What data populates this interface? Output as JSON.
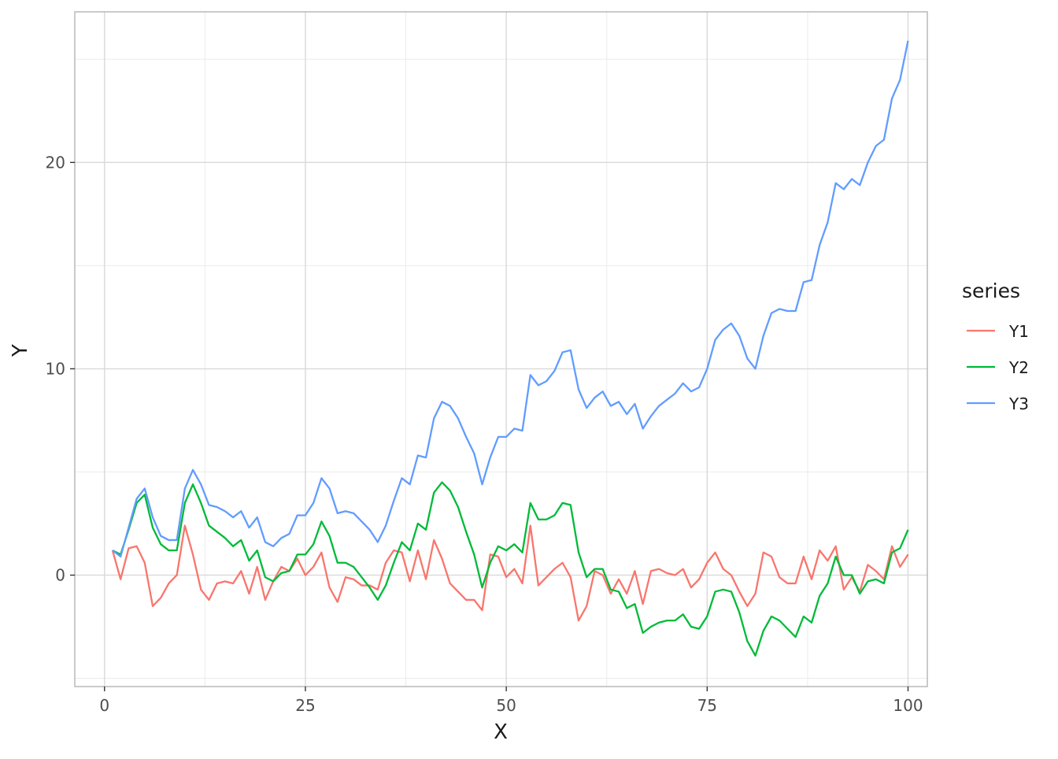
{
  "chart_data": {
    "type": "line",
    "title": "",
    "xlabel": "X",
    "ylabel": "Y",
    "xlim": [
      -3.7,
      102.4
    ],
    "ylim": [
      -5.4,
      27.3
    ],
    "x_major_ticks": [
      0,
      25,
      50,
      75,
      100
    ],
    "x_tick_labels": [
      "0",
      "25",
      "50",
      "75",
      "100"
    ],
    "x_minor_ticks": [
      12.5,
      37.5,
      62.5,
      87.5
    ],
    "y_major_ticks": [
      0,
      10,
      20
    ],
    "y_tick_labels": [
      "0",
      "10",
      "20"
    ],
    "y_minor_ticks": [
      -5,
      5,
      15,
      25
    ],
    "grid": true,
    "legend": {
      "title": "series",
      "position": "right"
    },
    "x": [
      1,
      2,
      3,
      4,
      5,
      6,
      7,
      8,
      9,
      10,
      11,
      12,
      13,
      14,
      15,
      16,
      17,
      18,
      19,
      20,
      21,
      22,
      23,
      24,
      25,
      26,
      27,
      28,
      29,
      30,
      31,
      32,
      33,
      34,
      35,
      36,
      37,
      38,
      39,
      40,
      41,
      42,
      43,
      44,
      45,
      46,
      47,
      48,
      49,
      50,
      51,
      52,
      53,
      54,
      55,
      56,
      57,
      58,
      59,
      60,
      61,
      62,
      63,
      64,
      65,
      66,
      67,
      68,
      69,
      70,
      71,
      72,
      73,
      74,
      75,
      76,
      77,
      78,
      79,
      80,
      81,
      82,
      83,
      84,
      85,
      86,
      87,
      88,
      89,
      90,
      91,
      92,
      93,
      94,
      95,
      96,
      97,
      98,
      99,
      100
    ],
    "series": [
      {
        "name": "Y1",
        "color": "#F8766D",
        "values": [
          1.2,
          -0.2,
          1.3,
          1.4,
          0.6,
          -1.5,
          -1.1,
          -0.4,
          0.0,
          2.4,
          1.0,
          -0.7,
          -1.2,
          -0.4,
          -0.3,
          -0.4,
          0.2,
          -0.9,
          0.4,
          -1.2,
          -0.3,
          0.4,
          0.2,
          0.8,
          0.0,
          0.4,
          1.1,
          -0.6,
          -1.3,
          -0.1,
          -0.2,
          -0.5,
          -0.5,
          -0.7,
          0.6,
          1.2,
          1.1,
          -0.3,
          1.2,
          -0.2,
          1.7,
          0.8,
          -0.4,
          -0.8,
          -1.2,
          -1.2,
          -1.7,
          1.0,
          0.9,
          -0.1,
          0.3,
          -0.4,
          2.4,
          -0.5,
          -0.1,
          0.3,
          0.6,
          -0.1,
          -2.2,
          -1.5,
          0.2,
          0.0,
          -0.9,
          -0.2,
          -0.9,
          0.2,
          -1.4,
          0.2,
          0.3,
          0.1,
          0.0,
          0.3,
          -0.6,
          -0.2,
          0.6,
          1.1,
          0.3,
          0.0,
          -0.8,
          -1.5,
          -0.9,
          1.1,
          0.9,
          -0.1,
          -0.4,
          -0.4,
          0.9,
          -0.2,
          1.2,
          0.7,
          1.4,
          -0.7,
          -0.1,
          -0.8,
          0.5,
          0.2,
          -0.2,
          1.4,
          0.4,
          1.0
        ]
      },
      {
        "name": "Y2",
        "color": "#00BA38",
        "values": [
          1.2,
          1.0,
          2.2,
          3.5,
          3.9,
          2.3,
          1.5,
          1.2,
          1.2,
          3.5,
          4.4,
          3.5,
          2.4,
          2.1,
          1.8,
          1.4,
          1.7,
          0.7,
          1.2,
          -0.1,
          -0.3,
          0.1,
          0.2,
          1.0,
          1.0,
          1.5,
          2.6,
          1.9,
          0.6,
          0.6,
          0.4,
          -0.1,
          -0.6,
          -1.2,
          -0.5,
          0.6,
          1.6,
          1.2,
          2.5,
          2.2,
          4.0,
          4.5,
          4.1,
          3.3,
          2.1,
          1.0,
          -0.6,
          0.6,
          1.4,
          1.2,
          1.5,
          1.1,
          3.5,
          2.7,
          2.7,
          2.9,
          3.5,
          3.4,
          1.1,
          -0.1,
          0.3,
          0.3,
          -0.7,
          -0.8,
          -1.6,
          -1.4,
          -2.8,
          -2.5,
          -2.3,
          -2.2,
          -2.2,
          -1.9,
          -2.5,
          -2.6,
          -2.0,
          -0.8,
          -0.7,
          -0.8,
          -1.8,
          -3.2,
          -3.9,
          -2.7,
          -2.0,
          -2.2,
          -2.6,
          -3.0,
          -2.0,
          -2.3,
          -1.0,
          -0.4,
          0.9,
          0.0,
          0.0,
          -0.9,
          -0.3,
          -0.2,
          -0.4,
          1.1,
          1.3,
          2.2
        ]
      },
      {
        "name": "Y3",
        "color": "#619CFF",
        "values": [
          1.2,
          0.9,
          2.3,
          3.7,
          4.2,
          2.8,
          1.9,
          1.7,
          1.7,
          4.2,
          5.1,
          4.4,
          3.4,
          3.3,
          3.1,
          2.8,
          3.1,
          2.3,
          2.8,
          1.6,
          1.4,
          1.8,
          2.0,
          2.9,
          2.9,
          3.5,
          4.7,
          4.2,
          3.0,
          3.1,
          3.0,
          2.6,
          2.2,
          1.6,
          2.4,
          3.6,
          4.7,
          4.4,
          5.8,
          5.7,
          7.6,
          8.4,
          8.2,
          7.6,
          6.7,
          5.9,
          4.4,
          5.7,
          6.7,
          6.7,
          7.1,
          7.0,
          9.7,
          9.2,
          9.4,
          9.9,
          10.8,
          10.9,
          9.0,
          8.1,
          8.6,
          8.9,
          8.2,
          8.4,
          7.8,
          8.3,
          7.1,
          7.7,
          8.2,
          8.5,
          8.8,
          9.3,
          8.9,
          9.1,
          10.0,
          11.4,
          11.9,
          12.2,
          11.6,
          10.5,
          10.0,
          11.6,
          12.7,
          12.9,
          12.8,
          12.8,
          14.2,
          14.3,
          16.0,
          17.1,
          19.0,
          18.7,
          19.2,
          18.9,
          20.0,
          20.8,
          21.1,
          23.1,
          24.0,
          25.9
        ]
      }
    ]
  }
}
